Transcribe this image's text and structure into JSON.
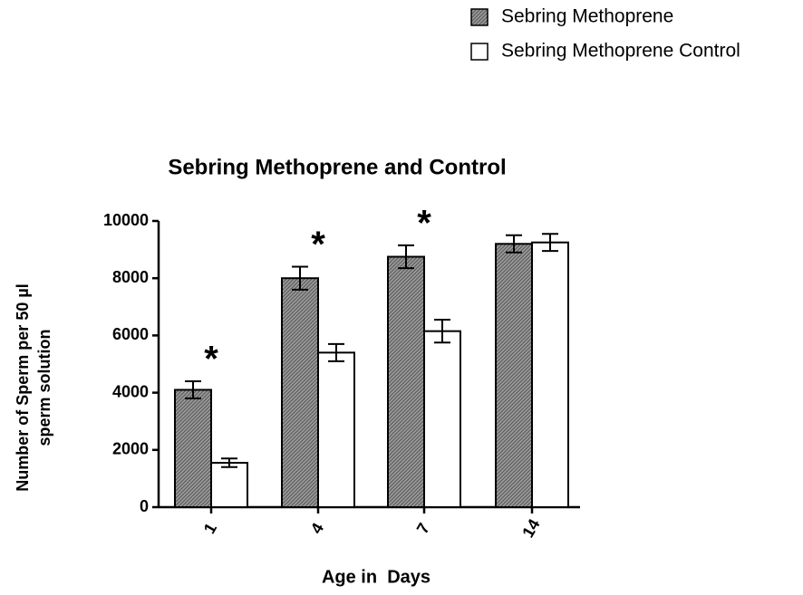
{
  "chart_data": {
    "type": "bar",
    "title": "Sebring Methoprene and Control",
    "x_label": "Age in  Days",
    "y_label": [
      "Number of Sperm per 50 µl",
      "sperm solution"
    ],
    "categories": [
      "1",
      "4",
      "7",
      "14"
    ],
    "series": [
      {
        "name": "Sebring Methoprene",
        "color": "#8a8a8a",
        "values": [
          4100,
          8000,
          8750,
          9200
        ],
        "errors": [
          300,
          400,
          400,
          300
        ]
      },
      {
        "name": "Sebring Methoprene Control",
        "color": "#ffffff",
        "values": [
          1550,
          5400,
          6150,
          9250
        ],
        "errors": [
          150,
          300,
          400,
          300
        ]
      }
    ],
    "annotations": [
      "*",
      "*",
      "*",
      null
    ],
    "ylim": [
      0,
      10000
    ],
    "yticks": [
      0,
      2000,
      4000,
      6000,
      8000,
      10000
    ]
  }
}
